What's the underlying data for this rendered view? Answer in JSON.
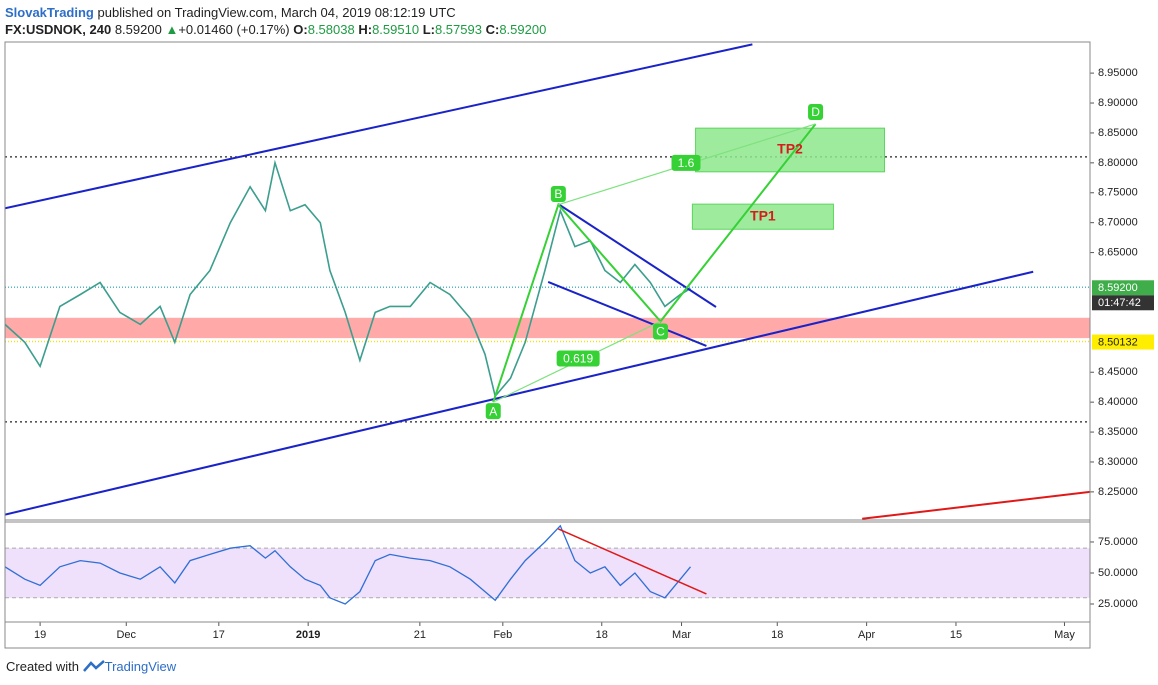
{
  "header": {
    "author": "SlovakTrading",
    "published": "published on TradingView.com, March 04, 2019 08:12:19 UTC",
    "symbol": "FX:USDNOK, 240",
    "last": "8.59200",
    "arrow": "▲",
    "change": "+0.01460 (+0.17%)",
    "ohlc": [
      [
        "O:",
        "8.58038"
      ],
      [
        "H:",
        "8.59510"
      ],
      [
        "L:",
        "8.57593"
      ],
      [
        "C:",
        "8.59200"
      ]
    ]
  },
  "footer": {
    "text": "Created with",
    "brand": "TradingView"
  },
  "chart_data": {
    "type": "line",
    "color": "#3c9e8e",
    "x": [
      0,
      3.1,
      5.5,
      8.6,
      11.8,
      14.9,
      18,
      21.2,
      24.3,
      26.6,
      29,
      32.1,
      35.3,
      38.4,
      40.8,
      42.3,
      44.7,
      47,
      49.4,
      50.9,
      53.3,
      55.6,
      58,
      60.3,
      63.5,
      66.6,
      69.7,
      72.9,
      75.2,
      76.8,
      79.2,
      81.5,
      84.6,
      87,
      89.3,
      91.7,
      94,
      96.4,
      98.7,
      101.1,
      103.4,
      105.8,
      107.4
    ],
    "values": [
      8.53,
      8.5,
      8.46,
      8.56,
      8.58,
      8.6,
      8.55,
      8.53,
      8.56,
      8.5,
      8.58,
      8.62,
      8.7,
      8.76,
      8.72,
      8.8,
      8.72,
      8.73,
      8.7,
      8.62,
      8.55,
      8.47,
      8.55,
      8.56,
      8.56,
      8.6,
      8.58,
      8.54,
      8.48,
      8.41,
      8.44,
      8.5,
      8.62,
      8.72,
      8.66,
      8.67,
      8.62,
      8.6,
      8.63,
      8.6,
      8.56,
      8.58,
      8.59
    ],
    "xlim": [
      0,
      170
    ],
    "xticks": [
      {
        "value": 5.5,
        "label": "19"
      },
      {
        "value": 19,
        "label": "Dec"
      },
      {
        "value": 33.5,
        "label": "17"
      },
      {
        "value": 47.5,
        "label": "2019"
      },
      {
        "value": 65,
        "label": "21"
      },
      {
        "value": 78,
        "label": "Feb"
      },
      {
        "value": 93.5,
        "label": "18"
      },
      {
        "value": 106,
        "label": "Mar"
      },
      {
        "value": 121,
        "label": "18"
      },
      {
        "value": 135,
        "label": "Apr"
      },
      {
        "value": 149,
        "label": "15"
      },
      {
        "value": 166,
        "label": "May"
      }
    ],
    "ylim": [
      8.203,
      9.002
    ],
    "yticks": [
      {
        "value": 8.25,
        "label": "8.25000"
      },
      {
        "value": 8.3,
        "label": "8.30000"
      },
      {
        "value": 8.35,
        "label": "8.35000"
      },
      {
        "value": 8.4,
        "label": "8.40000"
      },
      {
        "value": 8.45,
        "label": "8.45000"
      },
      {
        "value": 8.65,
        "label": "8.65000"
      },
      {
        "value": 8.7,
        "label": "8.70000"
      },
      {
        "value": 8.75,
        "label": "8.75000"
      },
      {
        "value": 8.8,
        "label": "8.80000"
      },
      {
        "value": 8.85,
        "label": "8.85000"
      },
      {
        "value": 8.9,
        "label": "8.90000"
      },
      {
        "value": 8.95,
        "label": "8.95000"
      }
    ],
    "zone": {
      "range": [
        8.507,
        8.541
      ],
      "color": "#ff9a9a"
    },
    "levels": [
      {
        "value": 8.81,
        "color": "#222"
      },
      {
        "value": 8.367,
        "color": "#222"
      }
    ],
    "badges": [
      {
        "label": "8.59200",
        "value": 8.592,
        "color": "#3fae4a",
        "line": "#4fb7c8"
      },
      {
        "label": "01:47:42",
        "color": "#333"
      },
      {
        "label": "8.50132",
        "value": 8.50132,
        "color": "#ffee00",
        "line": "#f5e400"
      }
    ],
    "trend_lines": [
      {
        "color": "#1a23c8",
        "points": [
          [
            0,
            8.724
          ],
          [
            117.1,
            8.998
          ]
        ]
      },
      {
        "color": "#1a23c8",
        "points": [
          [
            0,
            8.212
          ],
          [
            161.1,
            8.618
          ]
        ]
      },
      {
        "color": "#1a23c8",
        "points": [
          [
            86.7,
            8.731
          ],
          [
            111.4,
            8.559
          ]
        ]
      },
      {
        "color": "#1a23c8",
        "points": [
          [
            85.1,
            8.601
          ],
          [
            109.9,
            8.494
          ]
        ]
      },
      {
        "color": "#e01818",
        "points": [
          [
            134.3,
            8.205
          ],
          [
            170,
            8.25
          ]
        ]
      },
      {
        "color": "#35d135",
        "points": [
          [
            76.5,
            8.4
          ],
          [
            86.7,
            8.73
          ],
          [
            102.7,
            8.535
          ],
          [
            127,
            8.865
          ]
        ]
      },
      {
        "color": "#7de27d",
        "points": [
          [
            76.5,
            8.4
          ],
          [
            102.7,
            8.535
          ]
        ]
      },
      {
        "color": "#7de27d",
        "points": [
          [
            86.7,
            8.73
          ],
          [
            127,
            8.865
          ]
        ]
      }
    ],
    "targets": [
      {
        "label": "TP2",
        "x": [
          108.2,
          137.8
        ],
        "y": [
          8.785,
          8.858
        ]
      },
      {
        "label": "TP1",
        "x": [
          107.7,
          129.8
        ],
        "y": [
          8.689,
          8.731
        ]
      }
    ],
    "pattern_labels": [
      {
        "text": "A",
        "x": 76.5,
        "y": 8.385
      },
      {
        "text": "B",
        "x": 86.7,
        "y": 8.748
      },
      {
        "text": "C",
        "x": 102.7,
        "y": 8.518
      },
      {
        "text": "D",
        "x": 127,
        "y": 8.885
      },
      {
        "text": "1.6",
        "x": 106.7,
        "y": 8.8
      },
      {
        "text": "0.619",
        "x": 89.8,
        "y": 8.473
      }
    ],
    "rsi": {
      "color": "#2f6fd6",
      "values": [
        55,
        45,
        40,
        55,
        60,
        58,
        50,
        45,
        55,
        42,
        60,
        65,
        70,
        72,
        62,
        68,
        55,
        45,
        40,
        30,
        25,
        35,
        60,
        65,
        62,
        60,
        55,
        45,
        35,
        28,
        45,
        60,
        75,
        88,
        60,
        50,
        55,
        40,
        50,
        35,
        30,
        45,
        55
      ],
      "ylim": [
        10.5,
        91.1
      ],
      "yticks": [
        {
          "value": 75,
          "label": "75.0000"
        },
        {
          "value": 50,
          "label": "50.0000"
        },
        {
          "value": 25,
          "label": "25.0000"
        }
      ],
      "band": [
        30,
        70
      ],
      "band_color": "#efe0fb",
      "trend_line": {
        "color": "#e01818",
        "points": [
          [
            86.7,
            85.5
          ],
          [
            109.9,
            33.1
          ]
        ]
      }
    }
  }
}
